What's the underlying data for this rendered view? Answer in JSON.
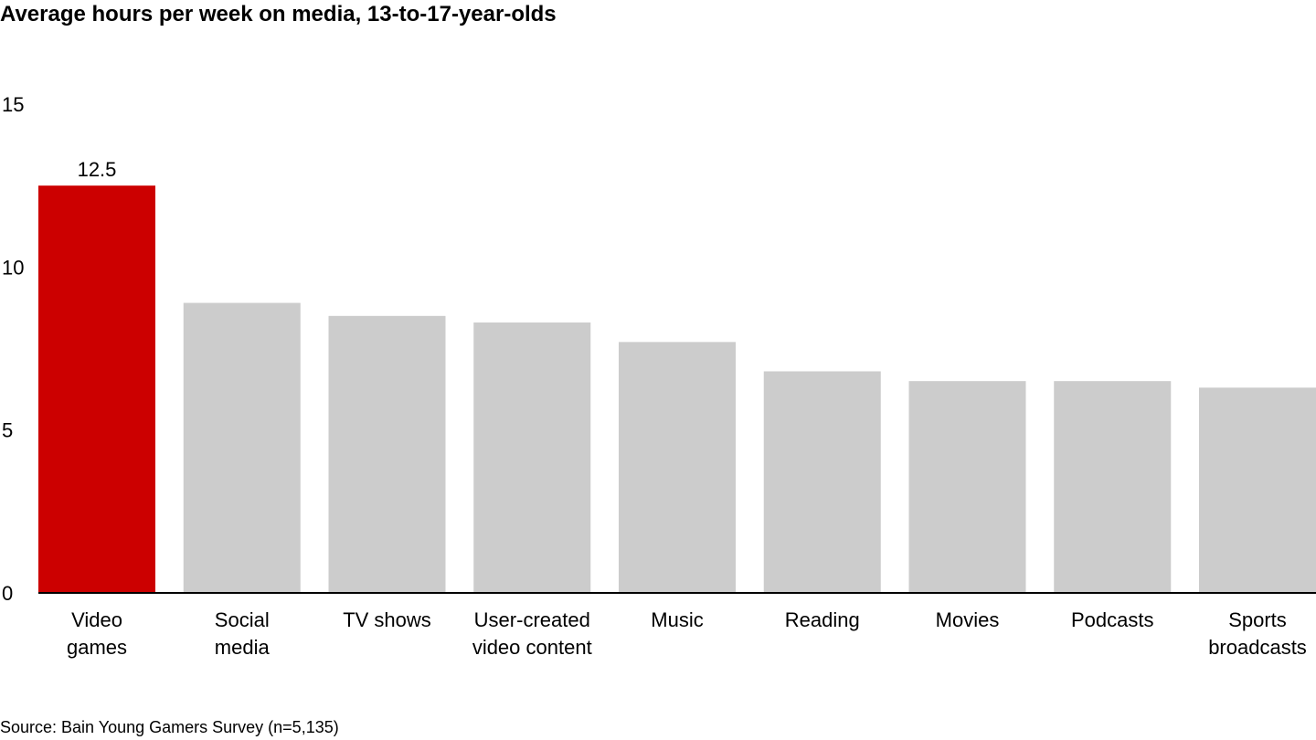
{
  "chart_data": {
    "type": "bar",
    "title": "Average hours per week on media, 13-to-17-year-olds",
    "source": "Source: Bain Young Gamers Survey (n=5,135)",
    "categories": [
      [
        "Video",
        "games"
      ],
      [
        "Social",
        "media"
      ],
      [
        "TV shows"
      ],
      [
        "User-created",
        "video content"
      ],
      [
        "Music"
      ],
      [
        "Reading"
      ],
      [
        "Movies"
      ],
      [
        "Podcasts"
      ],
      [
        "Sports",
        "broadcasts"
      ]
    ],
    "values": [
      12.5,
      8.9,
      8.5,
      8.3,
      7.7,
      6.8,
      6.5,
      6.5,
      6.3
    ],
    "data_labels": [
      "12.5",
      "",
      "",
      "",
      "",
      "",
      "",
      "",
      ""
    ],
    "colors": [
      "#cc0000",
      "#cccccc",
      "#cccccc",
      "#cccccc",
      "#cccccc",
      "#cccccc",
      "#cccccc",
      "#cccccc",
      "#cccccc"
    ],
    "yticks": [
      0,
      5,
      10,
      15
    ],
    "ylim": [
      0,
      15
    ],
    "grid": false,
    "legend": "none"
  }
}
